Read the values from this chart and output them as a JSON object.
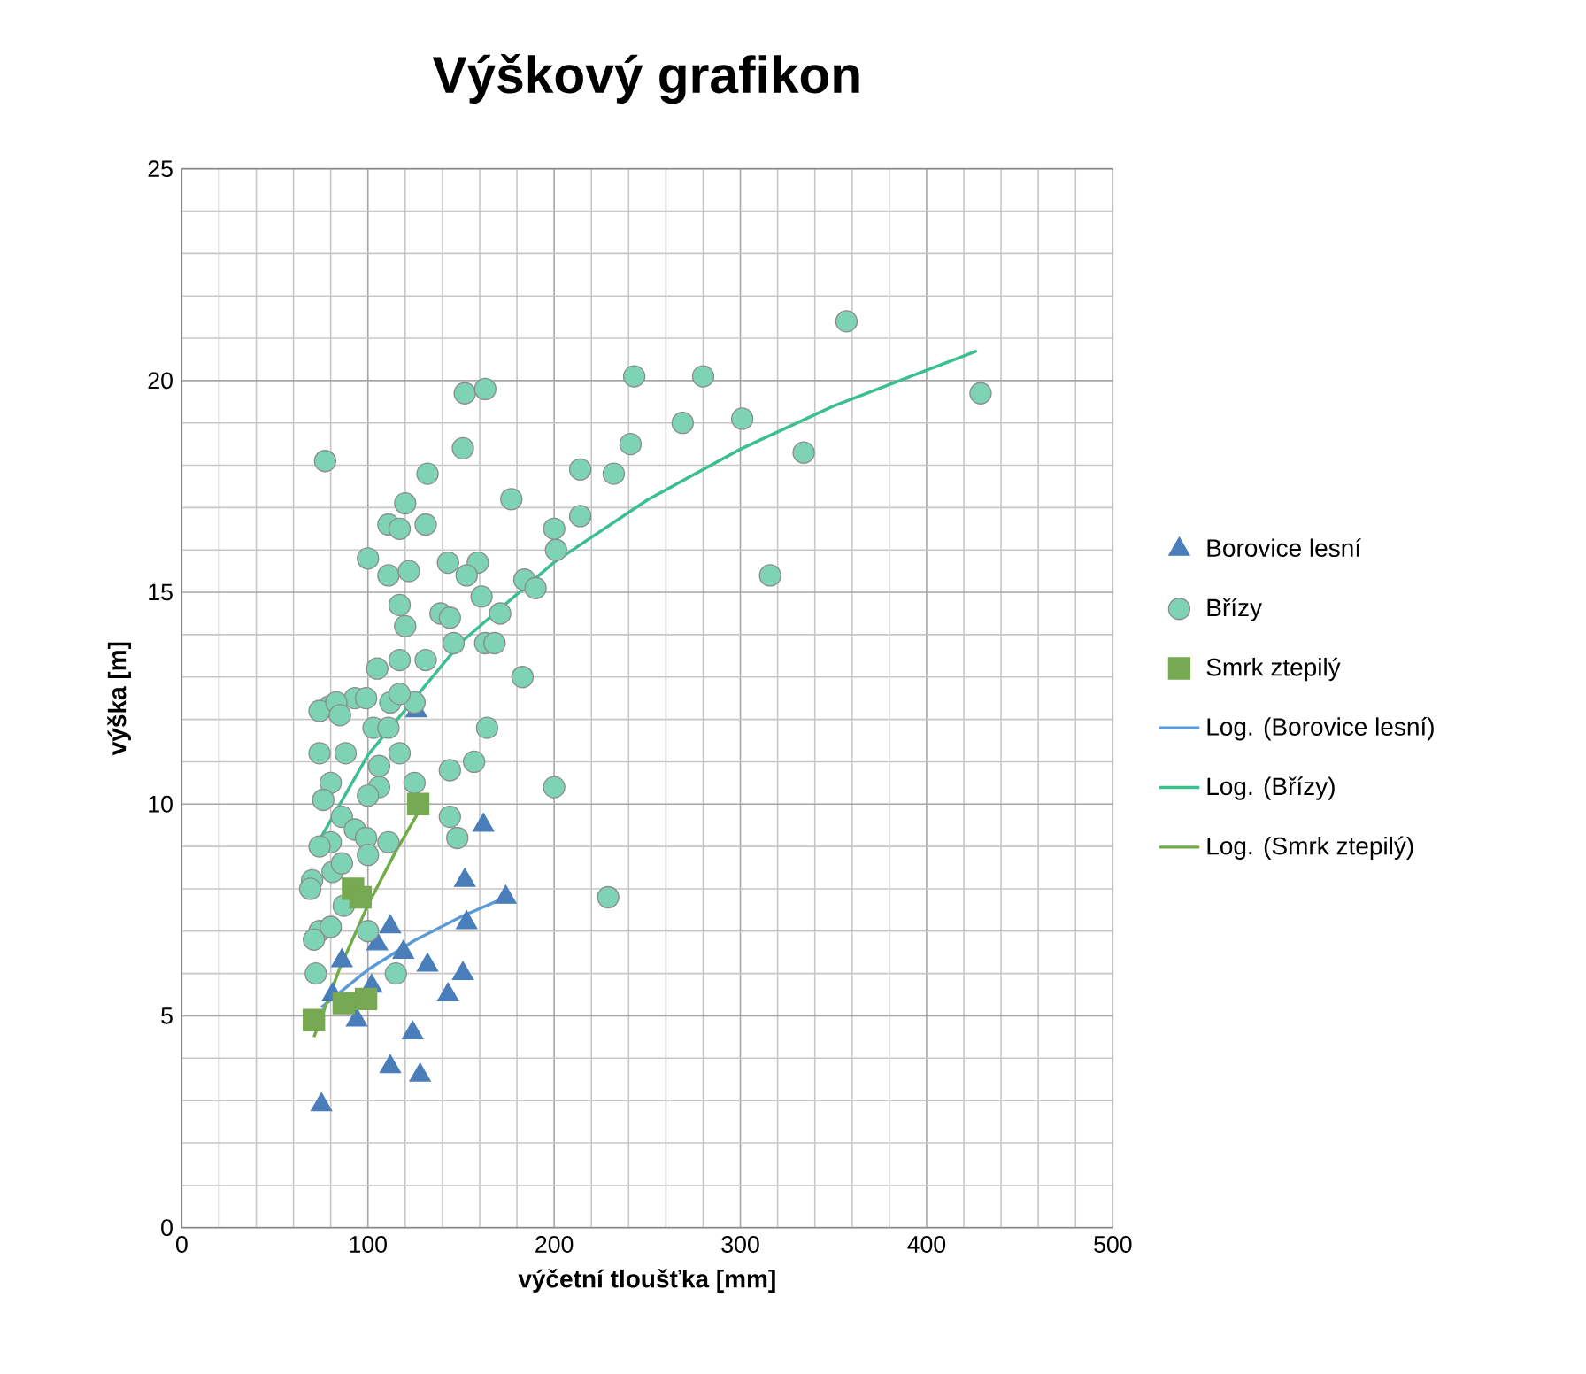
{
  "chart_data": {
    "type": "scatter",
    "title": "Výškový grafikon",
    "xlabel": "výčetní tloušťka [mm]",
    "ylabel": "výška [m]",
    "xlim": [
      0,
      500
    ],
    "ylim": [
      0,
      25
    ],
    "xticks": [
      0,
      100,
      200,
      300,
      400,
      500
    ],
    "yticks": [
      0,
      5,
      10,
      15,
      20,
      25
    ],
    "grid": true,
    "legend": "right",
    "series": [
      {
        "name": "Borovice lesní",
        "marker": "triangle",
        "color": "#4a7ebb",
        "x": [
          75,
          81,
          86,
          94,
          105,
          112,
          119,
          132,
          151,
          143,
          124,
          112,
          128,
          152,
          153,
          174,
          162,
          126,
          102
        ],
        "values": [
          2.9,
          5.5,
          6.3,
          4.9,
          6.7,
          7.1,
          6.5,
          6.2,
          6.0,
          5.5,
          4.6,
          3.8,
          3.6,
          8.2,
          7.2,
          7.8,
          9.5,
          12.2,
          5.7
        ]
      },
      {
        "name": "Břízy",
        "marker": "circle",
        "color": "#7dd3b4",
        "x": [
          77,
          152,
          163,
          151,
          132,
          120,
          177,
          214,
          232,
          241,
          243,
          269,
          280,
          301,
          334,
          357,
          429,
          316,
          200,
          214,
          201,
          184,
          190,
          183,
          200,
          229,
          159,
          153,
          143,
          131,
          111,
          117,
          100,
          111,
          122,
          117,
          120,
          139,
          144,
          161,
          163,
          168,
          171,
          146,
          131,
          117,
          105,
          125,
          93,
          79,
          74,
          83,
          99,
          112,
          117,
          85,
          103,
          111,
          164,
          157,
          144,
          125,
          106,
          100,
          74,
          88,
          117,
          106,
          80,
          76,
          86,
          93,
          99,
          111,
          148,
          144,
          80,
          74,
          70,
          81,
          86,
          100,
          74,
          80,
          100,
          115,
          72,
          71,
          69,
          87
        ],
        "values": [
          18.1,
          19.7,
          19.8,
          18.4,
          17.8,
          17.1,
          17.2,
          17.9,
          17.8,
          18.5,
          20.1,
          19.0,
          20.1,
          19.1,
          18.3,
          21.4,
          19.7,
          15.4,
          16.5,
          16.8,
          16.0,
          15.3,
          15.1,
          13.0,
          10.4,
          7.8,
          15.7,
          15.4,
          15.7,
          16.6,
          16.6,
          16.5,
          15.8,
          15.4,
          15.5,
          14.7,
          14.2,
          14.5,
          14.4,
          14.9,
          13.8,
          13.8,
          14.5,
          13.8,
          13.4,
          13.4,
          13.2,
          12.4,
          12.5,
          12.3,
          12.2,
          12.4,
          12.5,
          12.4,
          12.6,
          12.1,
          11.8,
          11.8,
          11.8,
          11.0,
          10.8,
          10.5,
          10.4,
          10.2,
          11.2,
          11.2,
          11.2,
          10.9,
          10.5,
          10.1,
          9.7,
          9.4,
          9.2,
          9.1,
          9.2,
          9.7,
          9.1,
          9.0,
          8.2,
          8.4,
          8.6,
          8.8,
          7.0,
          7.1,
          7.0,
          6.0,
          6.0,
          6.8,
          8.0,
          7.6
        ]
      },
      {
        "name": "Smrk ztepilý",
        "marker": "square",
        "color": "#77a852",
        "x": [
          71,
          92,
          96,
          99,
          87,
          127
        ],
        "values": [
          4.9,
          8.0,
          7.8,
          5.4,
          5.3,
          10.0
        ]
      },
      {
        "name": "Log. (Borovice lesní)",
        "type": "line",
        "marker": "none",
        "line_style": "solid",
        "color": "#5b9bd5",
        "x": [
          75,
          100,
          125,
          150,
          174
        ],
        "values": [
          5.2,
          6.09,
          6.78,
          7.34,
          7.8
        ]
      },
      {
        "name": "Log. (Břízy)",
        "type": "line",
        "marker": "none",
        "line_style": "solid",
        "color": "#3cbf8f",
        "x": [
          72,
          100,
          150,
          200,
          250,
          300,
          350,
          427
        ],
        "values": [
          9.0,
          11.16,
          13.82,
          15.71,
          17.18,
          18.38,
          19.4,
          20.7
        ]
      },
      {
        "name": "Log. (Smrk ztepilý)",
        "type": "line",
        "marker": "none",
        "line_style": "solid",
        "color": "#70ad47",
        "x": [
          71,
          85,
          100,
          115,
          127
        ],
        "values": [
          4.5,
          6.14,
          7.62,
          8.89,
          9.8
        ]
      }
    ]
  }
}
